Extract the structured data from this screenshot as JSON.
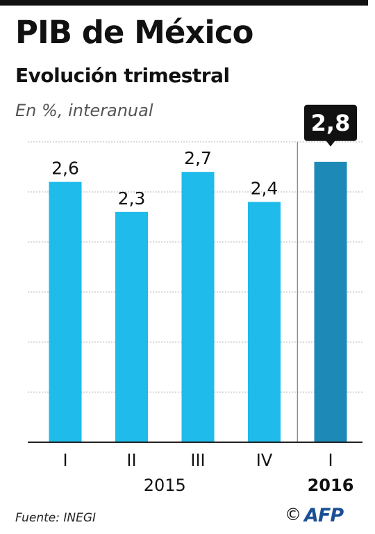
{
  "header": {
    "title": "PIB de México",
    "subtitle": "Evolución trimestral",
    "units": "En %, interanual"
  },
  "footer": {
    "source": "Fuente: INEGI",
    "copyright": "©",
    "logo": "AFP"
  },
  "colors": {
    "bar": "#1ebbeb",
    "highlight_bar": "#1d89b6",
    "callout": "#111111",
    "grid": "#b5b5b5",
    "axis": "#222222"
  },
  "chart_data": {
    "type": "bar",
    "title": "PIB de México",
    "subtitle": "Evolución trimestral",
    "ylabel": "En %, interanual",
    "categories": [
      "I",
      "II",
      "III",
      "IV",
      "I"
    ],
    "values": [
      2.6,
      2.3,
      2.7,
      2.4,
      2.8
    ],
    "value_labels": [
      "2,6",
      "2,3",
      "2,7",
      "2,4",
      "2,8"
    ],
    "highlight_index": 4,
    "groups": [
      {
        "label": "2015",
        "indices": [
          0,
          1,
          2,
          3
        ]
      },
      {
        "label": "2016",
        "indices": [
          4
        ]
      }
    ],
    "ylim": [
      0,
      3
    ],
    "gridlines": [
      0.5,
      1,
      1.5,
      2,
      2.5,
      3
    ],
    "grid": true,
    "legend": "none"
  }
}
